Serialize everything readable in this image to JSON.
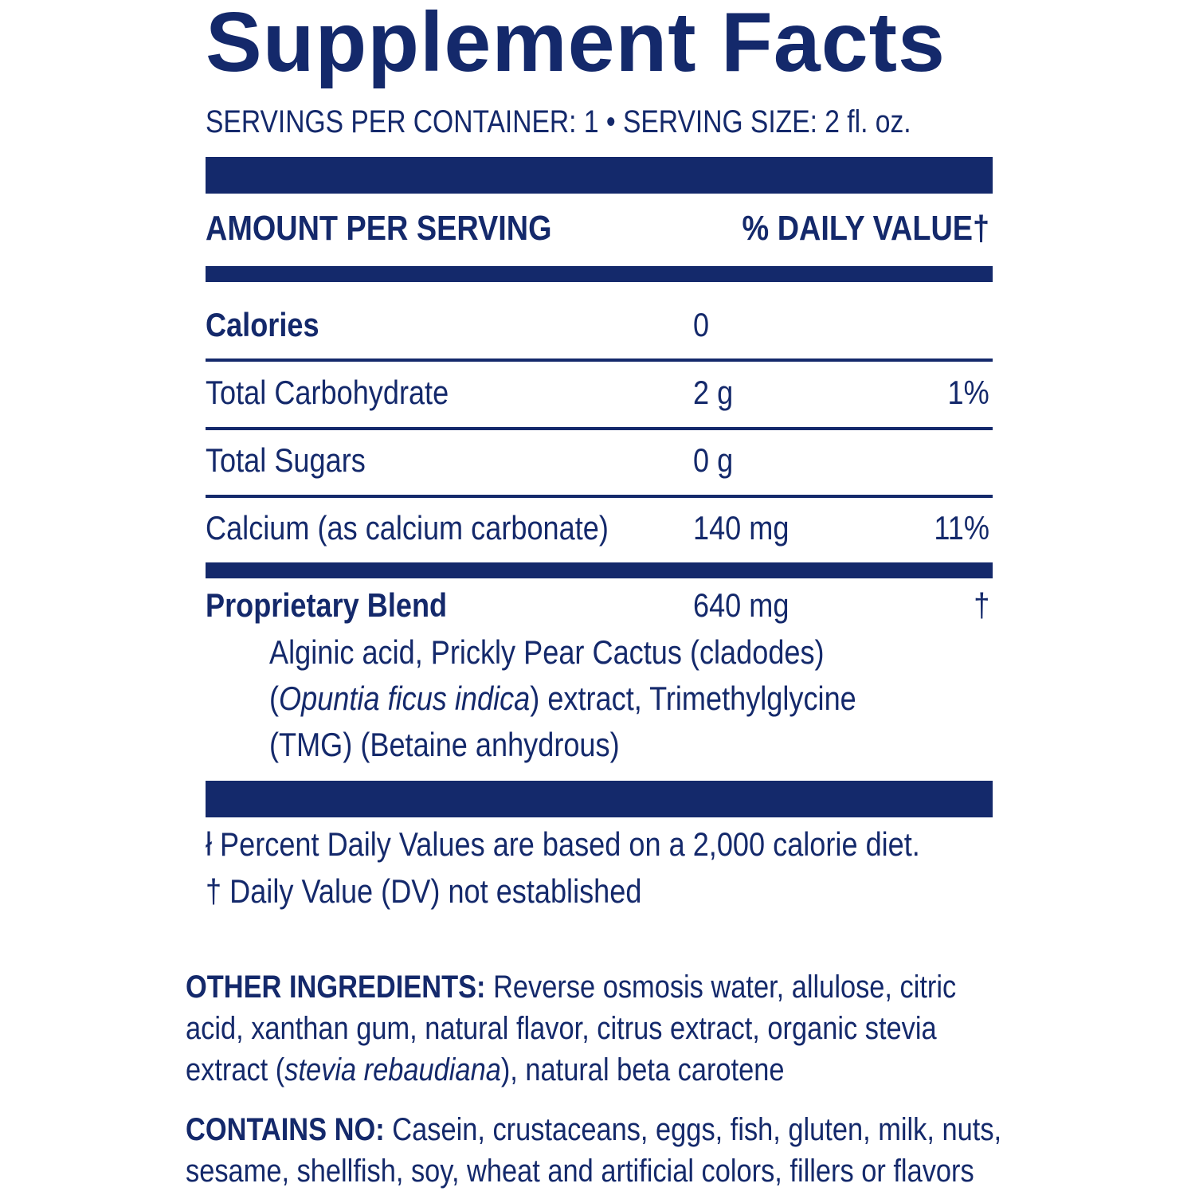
{
  "title": "Supplement Facts",
  "servings_line": "SERVINGS PER CONTAINER: 1 • SERVING SIZE: 2 fl. oz.",
  "header": {
    "amount_label": "AMOUNT PER SERVING",
    "dv_label": "% DAILY VALUE†"
  },
  "rows": [
    {
      "name": "Calories",
      "amount": "0",
      "dv": ""
    },
    {
      "name": "Total Carbohydrate",
      "amount": "2 g",
      "dv": "1%"
    },
    {
      "name": "Total Sugars",
      "amount": "0 g",
      "dv": ""
    },
    {
      "name": "Calcium (as calcium carbonate)",
      "amount": "140 mg",
      "dv": "11%"
    }
  ],
  "blend": {
    "name": "Proprietary Blend",
    "amount": "640 mg",
    "dv": "†",
    "line1": "Alginic acid, Prickly Pear Cactus (cladodes)",
    "line2_open": "(",
    "line2_italic": "Opuntia ficus indica",
    "line2_rest": ") extract, Trimethylglycine",
    "line3": "(TMG) (Betaine anhydrous)"
  },
  "footnotes": {
    "note1": "ł Percent Daily Values are based on a 2,000 calorie diet.",
    "note2": "† Daily Value (DV) not established"
  },
  "other_ingredients": {
    "label": "OTHER INGREDIENTS:",
    "line1": " Reverse osmosis water, allulose, citric",
    "line2": "acid, xanthan gum, natural flavor, citrus extract, organic stevia",
    "line3_start": "extract (",
    "line3_italic": "stevia rebaudiana",
    "line3_end": "), natural beta carotene"
  },
  "contains_no": {
    "label": "CONTAINS NO:",
    "line1": " Casein, crustaceans, eggs, fish, gluten, milk, nuts,",
    "line2": "sesame, shellfish, soy, wheat and artificial colors, fillers or flavors"
  },
  "colors": {
    "text": "#14296b",
    "background": "#ffffff"
  }
}
